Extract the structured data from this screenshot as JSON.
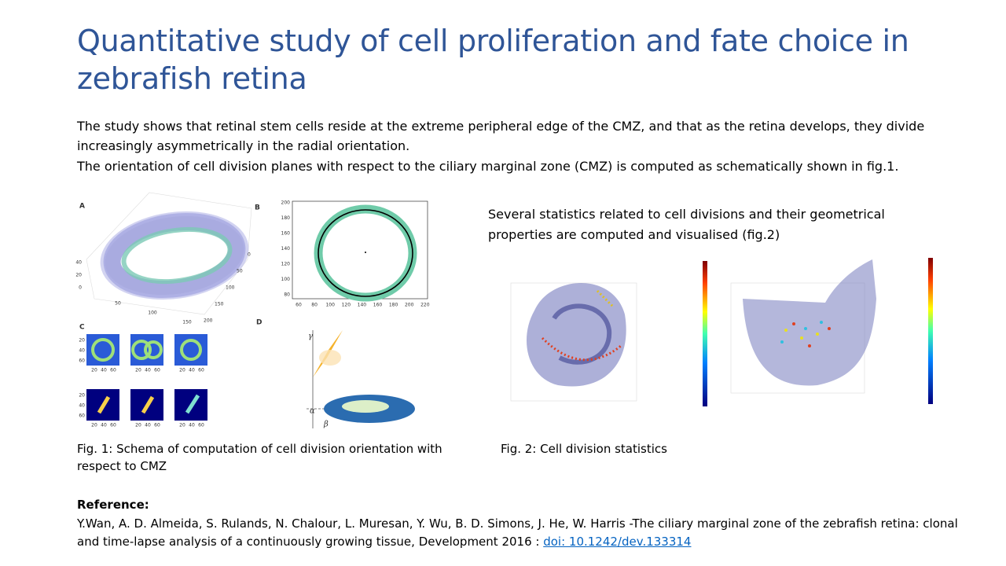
{
  "title": "Quantitative study of cell proliferation and fate choice in zebrafish retina",
  "body": [
    "The study shows that retinal stem cells reside at the extreme peripheral edge of the CMZ, and that as the retina develops, they divide increasingly asymmetrically in the radial orientation.",
    "The orientation of cell division planes with respect to the ciliary marginal zone (CMZ) is computed as schematically shown in fig.1."
  ],
  "fig1": {
    "panel_a": {
      "label": "A",
      "left_ticks": [
        40,
        20,
        0
      ],
      "bottom_ticks": [
        50,
        100,
        150
      ],
      "right_ticks": [
        0,
        50,
        100,
        150,
        200
      ]
    },
    "panel_b": {
      "label": "B",
      "xticks": [
        60,
        80,
        100,
        120,
        140,
        160,
        180,
        200,
        220
      ],
      "yticks": [
        200,
        180,
        160,
        140,
        120,
        100,
        80
      ]
    },
    "panel_c": {
      "label": "C",
      "ticks": [
        20,
        40,
        60
      ]
    },
    "panel_d": {
      "label": "D",
      "angles": [
        "γ",
        "α",
        "β"
      ]
    },
    "caption": "Fig. 1: Schema of computation of cell division orientation with respect to CMZ"
  },
  "fig2": {
    "intro": "Several statistics related to cell divisions and their geometrical properties are computed and visualised (fig.2)",
    "caption": "Fig. 2: Cell division statistics"
  },
  "reference": {
    "heading": "Reference:",
    "text": "Y.Wan, A. D. Almeida, S. Rulands, N. Chalour, L. Muresan, Y. Wu, B. D. Simons, J. He, W. Harris -The ciliary marginal zone of the zebrafish retina: clonal and time-lapse analysis of a continuously growing tissue, Development 2016 :",
    "link": "doi: 10.1242/dev.133314"
  }
}
